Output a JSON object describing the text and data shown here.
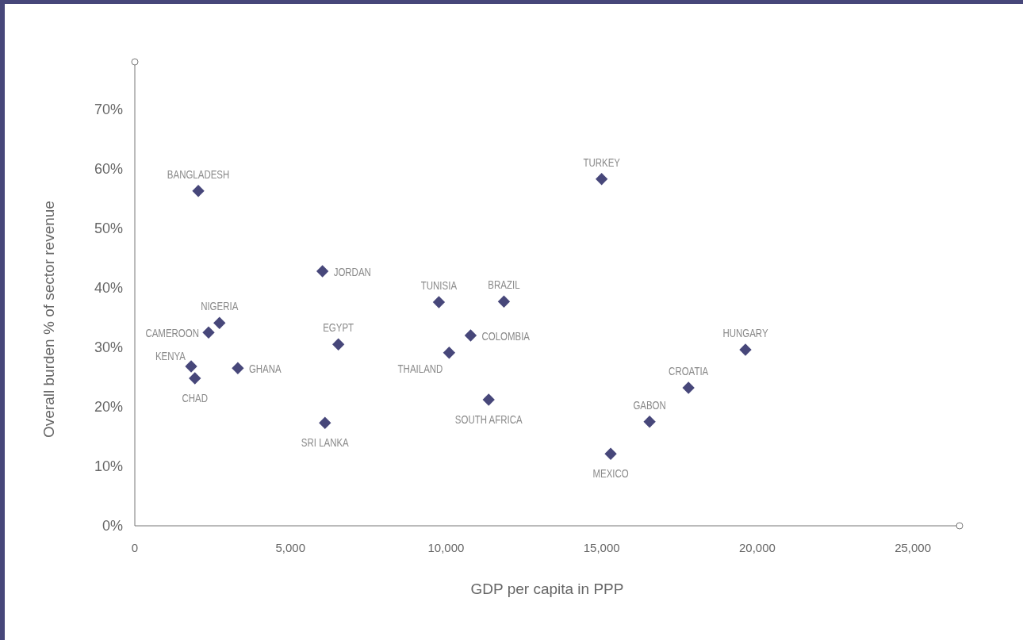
{
  "chart_data": {
    "type": "scatter",
    "xlabel": "GDP per capita in PPP",
    "ylabel": "Overall burden % of sector revenue",
    "x": [
      2040,
      15000,
      6030,
      9770,
      11860,
      2720,
      2370,
      6540,
      10790,
      10100,
      19620,
      1810,
      1930,
      3310,
      11370,
      17790,
      6110,
      16540,
      15290
    ],
    "series": [
      {
        "color": "#47477a",
        "values": [
          56.3,
          58.3,
          42.8,
          37.6,
          37.7,
          34.1,
          32.5,
          30.5,
          32.0,
          29.1,
          29.6,
          26.8,
          24.8,
          26.5,
          21.2,
          23.2,
          17.3,
          17.5,
          12.1
        ]
      }
    ],
    "marker": "diamond",
    "xlim": [
      0,
      26500
    ],
    "ylim": [
      0,
      78
    ],
    "xticks": [
      0,
      {
        "value": 5000,
        "label": "5,000"
      },
      {
        "value": 10000,
        "label": "10,000"
      },
      {
        "value": 15000,
        "label": "15,000"
      },
      {
        "value": 20000,
        "label": "20,000"
      },
      {
        "value": 25000,
        "label": "25,000"
      }
    ],
    "yticks": [
      {
        "value": 0,
        "label": "0%"
      },
      {
        "value": 10,
        "label": "10%"
      },
      {
        "value": 20,
        "label": "20%"
      },
      {
        "value": 30,
        "label": "30%"
      },
      {
        "value": 40,
        "label": "40%"
      },
      {
        "value": 50,
        "label": "50%"
      },
      {
        "value": 60,
        "label": "60%"
      },
      {
        "value": 70,
        "label": "70%"
      }
    ],
    "annotations": [
      {
        "text": "BANGLADESH",
        "x": 2040,
        "y": 56.3
      },
      {
        "text": "TURKEY",
        "x": 15000,
        "y": 58.3
      },
      {
        "text": "JORDAN",
        "x": 6030,
        "y": 42.8
      },
      {
        "text": "TUNISIA",
        "x": 9770,
        "y": 37.6
      },
      {
        "text": "BRAZIL",
        "x": 11860,
        "y": 37.7
      },
      {
        "text": "NIGERIA",
        "x": 2720,
        "y": 34.1
      },
      {
        "text": "CAMEROON",
        "x": 2370,
        "y": 32.5
      },
      {
        "text": "EGYPT",
        "x": 6540,
        "y": 30.5
      },
      {
        "text": "COLOMBIA",
        "x": 10790,
        "y": 32.0
      },
      {
        "text": "THAILAND",
        "x": 10100,
        "y": 29.1
      },
      {
        "text": "HUNGARY",
        "x": 19620,
        "y": 29.6
      },
      {
        "text": "KENYA",
        "x": 1810,
        "y": 26.8
      },
      {
        "text": "CHAD",
        "x": 1930,
        "y": 24.8
      },
      {
        "text": "GHANA",
        "x": 3310,
        "y": 26.5
      },
      {
        "text": "SOUTH AFRICA",
        "x": 11370,
        "y": 21.2
      },
      {
        "text": "CROATIA",
        "x": 17790,
        "y": 23.2
      },
      {
        "text": "SRI LANKA",
        "x": 6110,
        "y": 17.3
      },
      {
        "text": "GABON",
        "x": 16540,
        "y": 17.5
      },
      {
        "text": "MEXICO",
        "x": 15290,
        "y": 12.1
      }
    ]
  }
}
